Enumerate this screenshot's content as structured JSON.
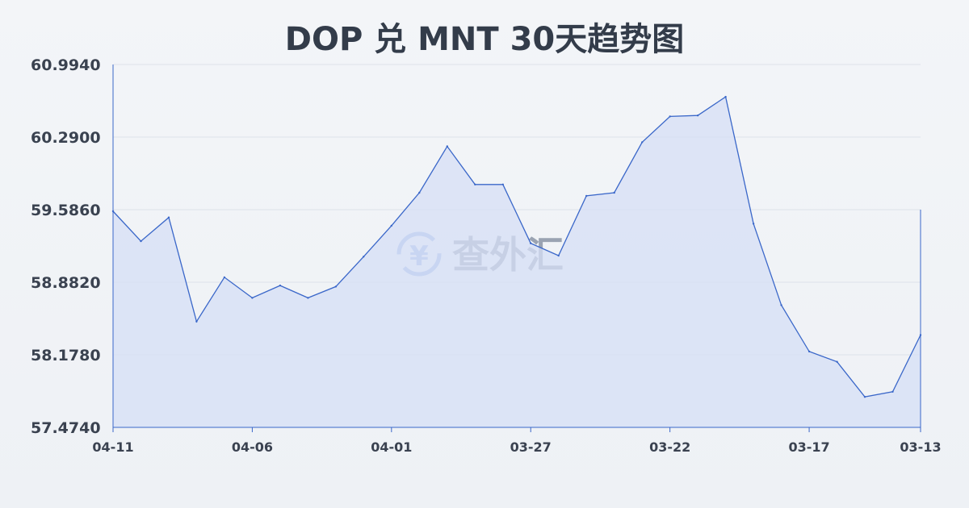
{
  "page": {
    "title": "DOP 兑 MNT 30天趋势图"
  },
  "watermark": {
    "text": "查外汇",
    "symbol": "¥"
  },
  "colors": {
    "line": "#3a67c9",
    "area": "#d5dff5",
    "grid": "#dde2ea",
    "text": "#3a4250"
  },
  "chart_data": {
    "type": "area",
    "title": "DOP 兑 MNT 30天趋势图",
    "xlabel": "",
    "ylabel": "",
    "x": [
      "04-11",
      "04-10",
      "04-09",
      "04-08",
      "04-07",
      "04-06",
      "04-05",
      "04-04",
      "04-03",
      "04-02",
      "04-01",
      "03-31",
      "03-30",
      "03-29",
      "03-28",
      "03-27",
      "03-26",
      "03-25",
      "03-24",
      "03-23",
      "03-22",
      "03-21",
      "03-20",
      "03-19",
      "03-18",
      "03-17",
      "03-16",
      "03-15",
      "03-14",
      "03-13"
    ],
    "x_tick_labels": [
      "04-11",
      "04-06",
      "04-01",
      "03-27",
      "03-22",
      "03-17",
      "03-13"
    ],
    "y_tick_labels": [
      "60.9940",
      "60.2900",
      "59.5860",
      "58.8820",
      "58.1780",
      "57.4740"
    ],
    "ylim": [
      57.474,
      60.994
    ],
    "grid": true,
    "series": [
      {
        "values": [
          59.57,
          59.28,
          59.51,
          58.5,
          58.93,
          58.73,
          58.85,
          58.73,
          58.84,
          59.13,
          59.43,
          59.75,
          60.2,
          59.83,
          59.83,
          59.26,
          59.14,
          59.72,
          59.75,
          60.24,
          60.49,
          60.5,
          60.68,
          59.45,
          58.66,
          58.21,
          58.11,
          57.77,
          57.82,
          58.37
        ]
      }
    ]
  }
}
